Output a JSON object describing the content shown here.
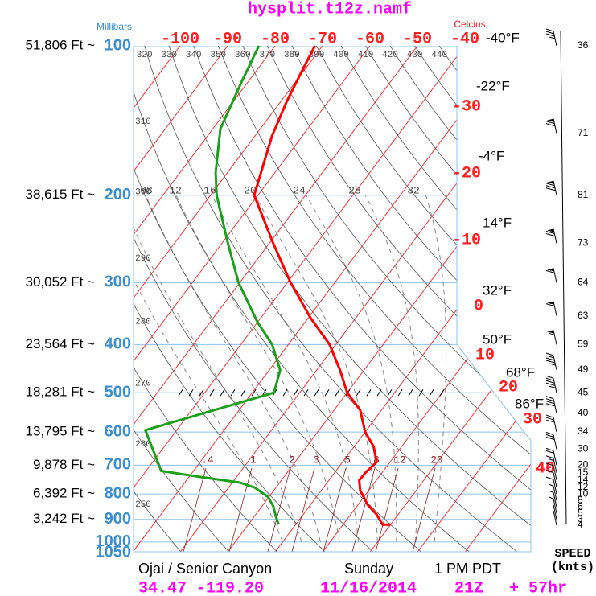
{
  "chart_data": {
    "type": "skewt",
    "title": "hysplit.t12z.namf",
    "pressure_label": "Millibars",
    "temperature_label": "Celcius",
    "plim": [
      100,
      1050
    ],
    "tlim": [
      -100,
      -40
    ],
    "levels": [
      {
        "pressure": 100,
        "height": "51,806 Ft ~"
      },
      {
        "pressure": 200,
        "height": "38,615 Ft ~"
      },
      {
        "pressure": 300,
        "height": "30,052 Ft ~"
      },
      {
        "pressure": 400,
        "height": "23,564 Ft ~"
      },
      {
        "pressure": 500,
        "height": "18,281 Ft ~"
      },
      {
        "pressure": 600,
        "height": "13,795 Ft ~"
      },
      {
        "pressure": 700,
        "height": "9,878 Ft ~"
      },
      {
        "pressure": 800,
        "height": "6,392 Ft ~"
      },
      {
        "pressure": 900,
        "height": "3,242 Ft ~"
      },
      {
        "pressure": 1000
      },
      {
        "pressure": 1050
      }
    ],
    "top_temperature_ticks": [
      -100,
      -90,
      -80,
      -70,
      -60,
      -50,
      -40
    ],
    "side_temperature_ticks": [
      -30,
      -20,
      -10,
      0,
      10,
      20,
      30,
      40
    ],
    "fahrenheit_labels": [
      "-40°F",
      "-22°F",
      "-4°F",
      "14°F",
      "32°F",
      "50°F",
      "68°F",
      "86°F"
    ],
    "theta_ticks_top": [
      320,
      330,
      340,
      350,
      360,
      370,
      380,
      390,
      400,
      410,
      420,
      430,
      440
    ],
    "theta_ticks_left": [
      310,
      300,
      290,
      280,
      270,
      260,
      250
    ],
    "moist_labels": [
      "08",
      "12",
      "16",
      "20",
      "24",
      "28",
      "32"
    ],
    "mixing_labels": [
      ".4",
      "1",
      "2",
      "3",
      "5",
      "8",
      "12",
      "20"
    ],
    "series": [
      {
        "color": "#ff0000",
        "pressure": [
          100,
          111,
          129,
          152,
          200,
          248,
          298,
          353,
          400,
          450,
          500,
          542,
          600,
          642,
          690,
          724,
          751,
          787,
          842,
          879,
          922,
          922
        ],
        "values": [
          -71.6,
          -70.5,
          -68.8,
          -66.4,
          -60.8,
          -49.6,
          -39.7,
          -29.6,
          -21.3,
          -15.1,
          -10,
          -4.5,
          0,
          4.1,
          7.2,
          6.5,
          6.4,
          8.2,
          12.1,
          15.4,
          18.3,
          20
        ]
      },
      {
        "color": "#1aa01a",
        "pressure": [
          100,
          117,
          147,
          180,
          200,
          248,
          300,
          360,
          400,
          450,
          500,
          595,
          719,
          740,
          759,
          777,
          811,
          847,
          889,
          922
        ],
        "values": [
          -83.4,
          -81.5,
          -78.4,
          -72.5,
          -68.7,
          -59.1,
          -50.3,
          -40.1,
          -33.4,
          -27.7,
          -25.4,
          -46.6,
          -36.8,
          -27.2,
          -18.4,
          -14.4,
          -10.2,
          -7.6,
          -5.4,
          -3.6
        ]
      }
    ],
    "wind": {
      "label": "SPEED",
      "unit": "(knts)",
      "pressure": [
        100,
        150,
        200,
        250,
        300,
        350,
        400,
        450,
        500,
        550,
        600,
        650,
        700,
        725,
        750,
        775,
        800,
        825,
        850,
        875,
        900,
        925
      ],
      "speeds": [
        36,
        71,
        81,
        73,
        64,
        63,
        59,
        49,
        45,
        40,
        34,
        30,
        20,
        15,
        14,
        12,
        10,
        8,
        6,
        5,
        3,
        4
      ]
    },
    "footer": {
      "location": "Ojai / Senior Canyon",
      "day": "Sunday",
      "time": "1 PM PDT",
      "coordinates": "34.47 -119.20",
      "date": "11/16/2014",
      "run": "21Z",
      "forecast": "+ 57hr"
    }
  }
}
